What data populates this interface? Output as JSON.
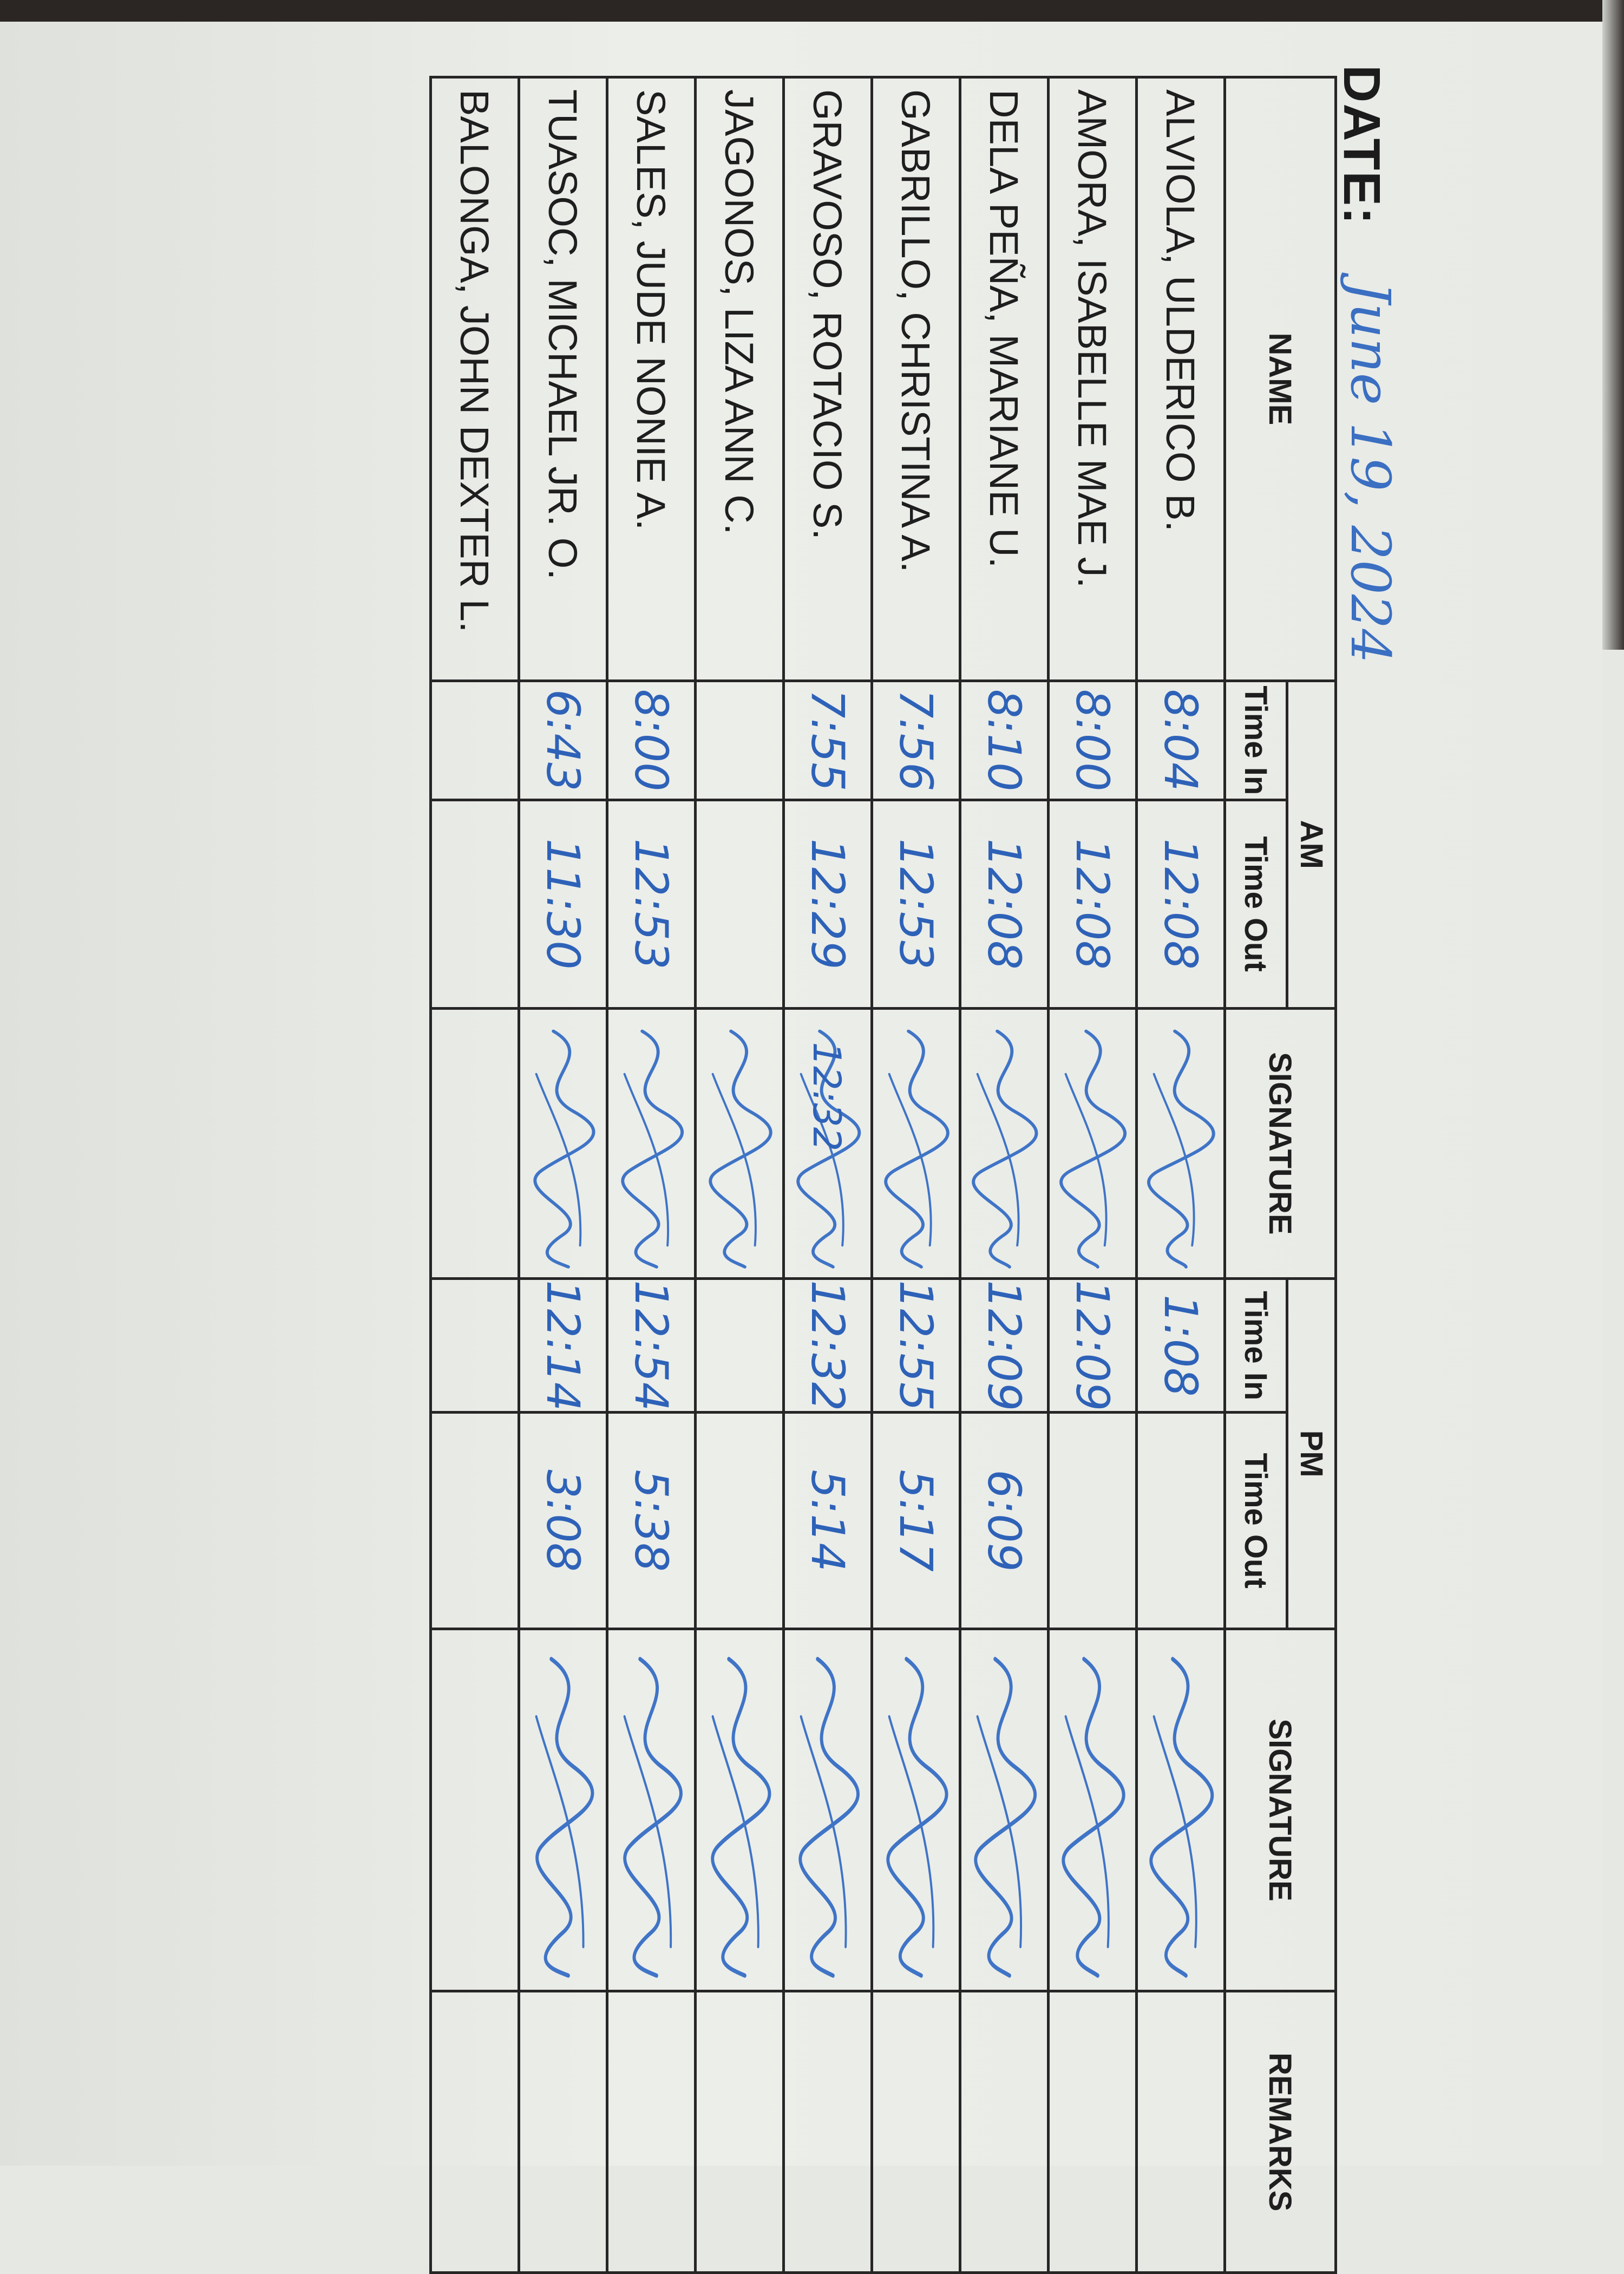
{
  "header": {
    "date_label": "DATE:",
    "date_value": "June 19, 2024"
  },
  "columns": {
    "name": "NAME",
    "am": "AM",
    "pm": "PM",
    "time_in": "Time In",
    "time_out": "Time Out",
    "signature": "SIGNATURE",
    "remarks": "REMARKS"
  },
  "colors": {
    "ink": "#2e62b8",
    "print": "#1e1e1e"
  },
  "rows": [
    {
      "name": "ALVIOLA, ULDERICO B.",
      "am_in": "8:04",
      "am_out": "12:08",
      "am_signed": true,
      "am_sig_note": "",
      "pm_in": "1:08",
      "pm_out": "",
      "pm_signed": true,
      "remarks": ""
    },
    {
      "name": "AMORA, ISABELLE MAE J.",
      "am_in": "8:00",
      "am_out": "12:08",
      "am_signed": true,
      "am_sig_note": "",
      "pm_in": "12:09",
      "pm_out": "",
      "pm_signed": true,
      "remarks": ""
    },
    {
      "name": "DELA PEÑA, MARIANE U.",
      "am_in": "8:10",
      "am_out": "12:08",
      "am_signed": true,
      "am_sig_note": "",
      "pm_in": "12:09",
      "pm_out": "6:09",
      "pm_signed": true,
      "remarks": ""
    },
    {
      "name": "GABRILLO, CHRISTINA A.",
      "am_in": "7:56",
      "am_out": "12:53",
      "am_signed": true,
      "am_sig_note": "",
      "pm_in": "12:55",
      "pm_out": "5:17",
      "pm_signed": true,
      "remarks": ""
    },
    {
      "name": "GRAVOSO, ROTACIO S.",
      "am_in": "7:55",
      "am_out": "12:29",
      "am_signed": true,
      "am_sig_note": "12:32",
      "pm_in": "12:32",
      "pm_out": "5:14",
      "pm_signed": true,
      "remarks": ""
    },
    {
      "name": "JAGONOS, LIZA ANN C.",
      "am_in": "",
      "am_out": "",
      "am_signed": true,
      "am_sig_note": "",
      "pm_in": "",
      "pm_out": "",
      "pm_signed": true,
      "remarks": ""
    },
    {
      "name": "SALES, JUDE NONIE A.",
      "am_in": "8:00",
      "am_out": "12:53",
      "am_signed": true,
      "am_sig_note": "",
      "pm_in": "12:54",
      "pm_out": "5:38",
      "pm_signed": true,
      "remarks": ""
    },
    {
      "name": "TUASOC, MICHAEL JR. O.",
      "am_in": "6:43",
      "am_out": "11:30",
      "am_signed": true,
      "am_sig_note": "",
      "pm_in": "12:14",
      "pm_out": "3:08",
      "pm_signed": true,
      "remarks": ""
    },
    {
      "name": "BALONGA, JOHN DEXTER L.",
      "am_in": "",
      "am_out": "",
      "am_signed": false,
      "am_sig_note": "",
      "pm_in": "",
      "pm_out": "",
      "pm_signed": false,
      "remarks": ""
    }
  ]
}
